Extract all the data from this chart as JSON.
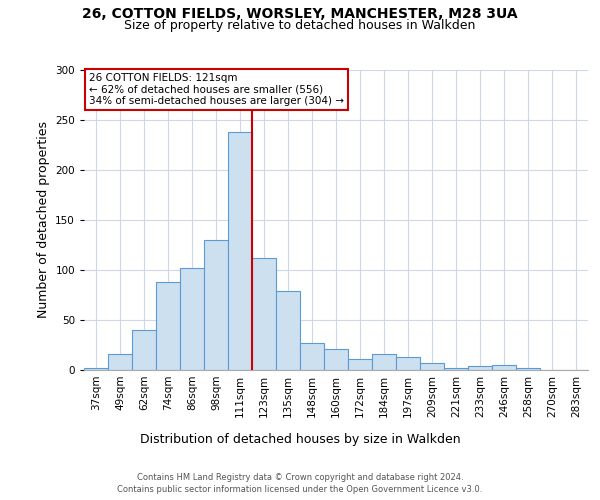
{
  "title1": "26, COTTON FIELDS, WORSLEY, MANCHESTER, M28 3UA",
  "title2": "Size of property relative to detached houses in Walkden",
  "xlabel": "Distribution of detached houses by size in Walkden",
  "ylabel": "Number of detached properties",
  "bar_color": "#cce0f0",
  "bar_edge_color": "#5b9bd5",
  "grid_color": "#d0d8e8",
  "vline_color": "#cc0000",
  "categories": [
    "37sqm",
    "49sqm",
    "62sqm",
    "74sqm",
    "86sqm",
    "98sqm",
    "111sqm",
    "123sqm",
    "135sqm",
    "148sqm",
    "160sqm",
    "172sqm",
    "184sqm",
    "197sqm",
    "209sqm",
    "221sqm",
    "233sqm",
    "246sqm",
    "258sqm",
    "270sqm",
    "283sqm"
  ],
  "values": [
    2,
    16,
    40,
    88,
    102,
    130,
    238,
    112,
    79,
    27,
    21,
    11,
    16,
    13,
    7,
    2,
    4,
    5,
    2,
    0,
    0
  ],
  "ylim": [
    0,
    300
  ],
  "yticks": [
    0,
    50,
    100,
    150,
    200,
    250,
    300
  ],
  "annotation_text": "26 COTTON FIELDS: 121sqm\n← 62% of detached houses are smaller (556)\n34% of semi-detached houses are larger (304) →",
  "footer1": "Contains HM Land Registry data © Crown copyright and database right 2024.",
  "footer2": "Contains public sector information licensed under the Open Government Licence v3.0.",
  "vline_bin_index": 7,
  "background_color": "#ffffff",
  "title_fontsize": 10,
  "subtitle_fontsize": 9,
  "tick_fontsize": 7.5,
  "ylabel_fontsize": 9,
  "xlabel_fontsize": 9,
  "footer_fontsize": 6,
  "annotation_fontsize": 7.5
}
